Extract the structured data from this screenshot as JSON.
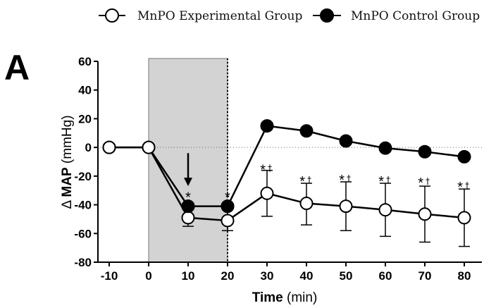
{
  "panel_label": "A",
  "colors": {
    "shade": "#d3d3d3",
    "line": "#000000",
    "open_fill": "#ffffff",
    "closed_fill": "#000000"
  },
  "chart_data": {
    "type": "line",
    "ylabel": {
      "prefix": "Δ",
      "bold": "MAP",
      "unit": "(mmHg)"
    },
    "xlabel": {
      "bold": "Time",
      "unit": "(min)"
    },
    "x": [
      -10,
      0,
      10,
      20,
      30,
      40,
      50,
      60,
      70,
      80
    ],
    "xlim": [
      -13,
      83
    ],
    "ylim": [
      -80,
      60
    ],
    "xticks": [
      -10,
      0,
      10,
      20,
      30,
      40,
      50,
      60,
      70,
      80
    ],
    "yticks": [
      -80,
      -60,
      -40,
      -20,
      0,
      20,
      40,
      60
    ],
    "shaded_region": [
      0,
      20
    ],
    "dotted_vertical_x": 20,
    "dotted_zero_line": true,
    "arrow": {
      "x": 10,
      "from_y": -4,
      "to_y": -27
    },
    "legend_placement": "top",
    "series": [
      {
        "name": "MnPO Experimental Group",
        "marker": "open-circle",
        "values": [
          0,
          0,
          -49,
          -51,
          -32,
          -39,
          -41,
          -43.5,
          -46.5,
          -49
        ],
        "error_upper": [
          null,
          null,
          -42,
          -43,
          -16,
          -25,
          -24,
          -25,
          -27,
          -29
        ],
        "error_lower": [
          null,
          null,
          -55,
          -58,
          -48,
          -54,
          -58,
          -62,
          -66,
          -69
        ]
      },
      {
        "name": "MnPO Control Group",
        "marker": "filled-circle",
        "values": [
          0,
          0,
          -41,
          -41,
          15,
          11.5,
          4.5,
          -0.5,
          -3,
          -6.5
        ]
      }
    ],
    "annotations": [
      {
        "x": 10,
        "y": -31,
        "text": "*"
      },
      {
        "x": 20,
        "y": -31,
        "text": "*"
      },
      {
        "x": 30,
        "y": -12,
        "text": "*",
        "dagger": "†"
      },
      {
        "x": 40,
        "y": -20,
        "text": "*",
        "dagger": "†"
      },
      {
        "x": 50,
        "y": -19,
        "text": "*",
        "dagger": "†"
      },
      {
        "x": 60,
        "y": -20,
        "text": "*",
        "dagger": "†"
      },
      {
        "x": 70,
        "y": -21,
        "text": "*",
        "dagger": "†"
      },
      {
        "x": 80,
        "y": -24,
        "text": "*",
        "dagger": "†"
      }
    ]
  }
}
